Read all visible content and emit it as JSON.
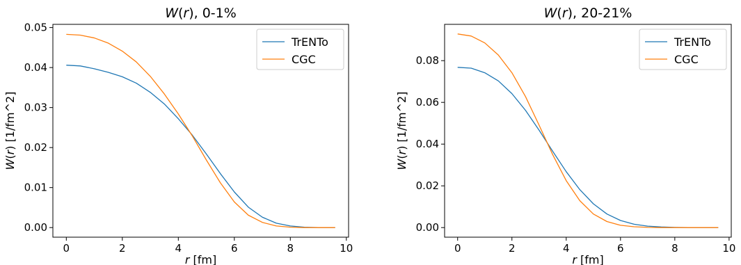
{
  "chart_data": [
    {
      "type": "line",
      "title_var": "W",
      "title_arg": "r",
      "title_suffix": ", 0-1%",
      "xlabel_var": "r",
      "xlabel_unit": " [fm]",
      "ylabel_var": "W",
      "ylabel_arg": "r",
      "ylabel_unit": " [1/fm^2]",
      "xlim": [
        -0.48,
        10.08
      ],
      "ylim": [
        -0.0024,
        0.0508
      ],
      "xticks": [
        0,
        2,
        4,
        6,
        8,
        10
      ],
      "xtick_labels": [
        "0",
        "2",
        "4",
        "6",
        "8",
        "10"
      ],
      "yticks": [
        0,
        0.01,
        0.02,
        0.03,
        0.04,
        0.05
      ],
      "ytick_labels": [
        "0.00",
        "0.01",
        "0.02",
        "0.03",
        "0.04",
        "0.05"
      ],
      "grid": false,
      "legend_position": "top-right",
      "series": [
        {
          "name": "TrENTo",
          "color": "#1f77b4",
          "x": [
            0,
            0.5,
            1,
            1.5,
            2,
            2.5,
            3,
            3.5,
            4,
            4.5,
            5,
            5.5,
            6,
            6.5,
            7,
            7.5,
            8,
            8.5,
            9,
            9.6
          ],
          "y": [
            0.0406,
            0.0404,
            0.0397,
            0.0388,
            0.0377,
            0.0361,
            0.0338,
            0.0309,
            0.0272,
            0.0231,
            0.0184,
            0.0135,
            0.0089,
            0.0051,
            0.0026,
            0.0011,
            0.0004,
            0.0001,
            0.0,
            0.0
          ]
        },
        {
          "name": "CGC",
          "color": "#ff7f0e",
          "x": [
            0,
            0.5,
            1,
            1.5,
            2,
            2.5,
            3,
            3.5,
            4,
            4.5,
            5,
            5.5,
            6,
            6.5,
            7,
            7.5,
            8,
            8.5,
            9,
            9.6
          ],
          "y": [
            0.0483,
            0.0481,
            0.0474,
            0.0461,
            0.0441,
            0.0414,
            0.0378,
            0.0334,
            0.0284,
            0.0229,
            0.0169,
            0.0112,
            0.0064,
            0.0031,
            0.0013,
            0.0004,
            0.0001,
            0.0,
            0.0,
            0.0
          ]
        }
      ]
    },
    {
      "type": "line",
      "title_var": "W",
      "title_arg": "r",
      "title_suffix": ", 20-21%",
      "xlabel_var": "r",
      "xlabel_unit": " [fm]",
      "ylabel_var": "W",
      "ylabel_arg": "r",
      "ylabel_unit": " [1/fm^2]",
      "xlim": [
        -0.48,
        10.08
      ],
      "ylim": [
        -0.0046,
        0.0974
      ],
      "xticks": [
        0,
        2,
        4,
        6,
        8,
        10
      ],
      "xtick_labels": [
        "0",
        "2",
        "4",
        "6",
        "8",
        "10"
      ],
      "yticks": [
        0,
        0.02,
        0.04,
        0.06,
        0.08
      ],
      "ytick_labels": [
        "0.00",
        "0.02",
        "0.04",
        "0.06",
        "0.08"
      ],
      "grid": false,
      "legend_position": "top-right",
      "series": [
        {
          "name": "TrENTo",
          "color": "#1f77b4",
          "x": [
            0,
            0.5,
            1,
            1.5,
            2,
            2.5,
            3,
            3.5,
            4,
            4.5,
            5,
            5.5,
            6,
            6.5,
            7,
            7.5,
            8,
            8.5,
            9,
            9.6
          ],
          "y": [
            0.0768,
            0.0764,
            0.0742,
            0.0703,
            0.0642,
            0.0562,
            0.0467,
            0.0366,
            0.0268,
            0.0182,
            0.0114,
            0.0065,
            0.0034,
            0.0016,
            0.0007,
            0.0003,
            0.0001,
            0.0,
            0.0,
            0.0
          ]
        },
        {
          "name": "CGC",
          "color": "#ff7f0e",
          "x": [
            0,
            0.5,
            1,
            1.5,
            2,
            2.5,
            3,
            3.5,
            4,
            4.5,
            5,
            5.5,
            6,
            6.5,
            7,
            7.5,
            8,
            8.5,
            9,
            9.6
          ],
          "y": [
            0.0928,
            0.0918,
            0.0885,
            0.0827,
            0.0742,
            0.0628,
            0.0491,
            0.035,
            0.0225,
            0.0129,
            0.0065,
            0.0029,
            0.0011,
            0.0004,
            0.0001,
            0.0,
            0.0,
            0.0,
            0.0,
            0.0
          ]
        }
      ]
    }
  ]
}
